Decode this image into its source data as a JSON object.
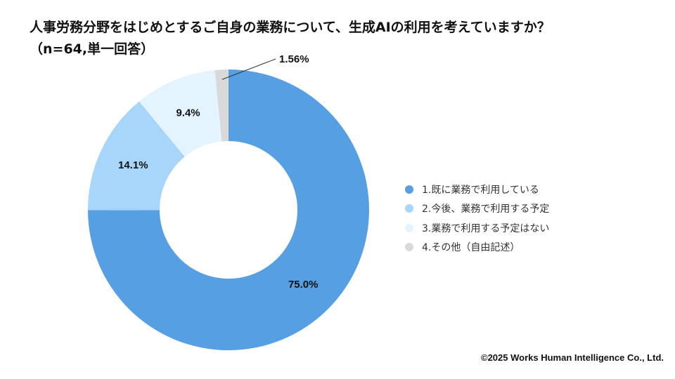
{
  "title": "人事労務分野をはじめとするご自身の業務について、生成AIの利用を考えていますか？（n=64,単一回答）",
  "chart_data": {
    "type": "pie",
    "donut": true,
    "categories": [
      "1.既に業務で利用している",
      "2.今後、業務で利用する予定",
      "3.業務で利用する予定はない",
      "4.その他（自由記述）"
    ],
    "values": [
      75.0,
      14.1,
      9.4,
      1.56
    ],
    "data_labels": [
      "75.0%",
      "14.1%",
      "9.4%",
      "1.56%"
    ],
    "colors": [
      "#559FE2",
      "#A8D6FB",
      "#E4F4FE",
      "#D9D9D9"
    ],
    "legend": "right",
    "start": "top",
    "direction": "clockwise"
  },
  "footer": {
    "copyright": "©2025 Works Human Intelligence Co., Ltd."
  }
}
